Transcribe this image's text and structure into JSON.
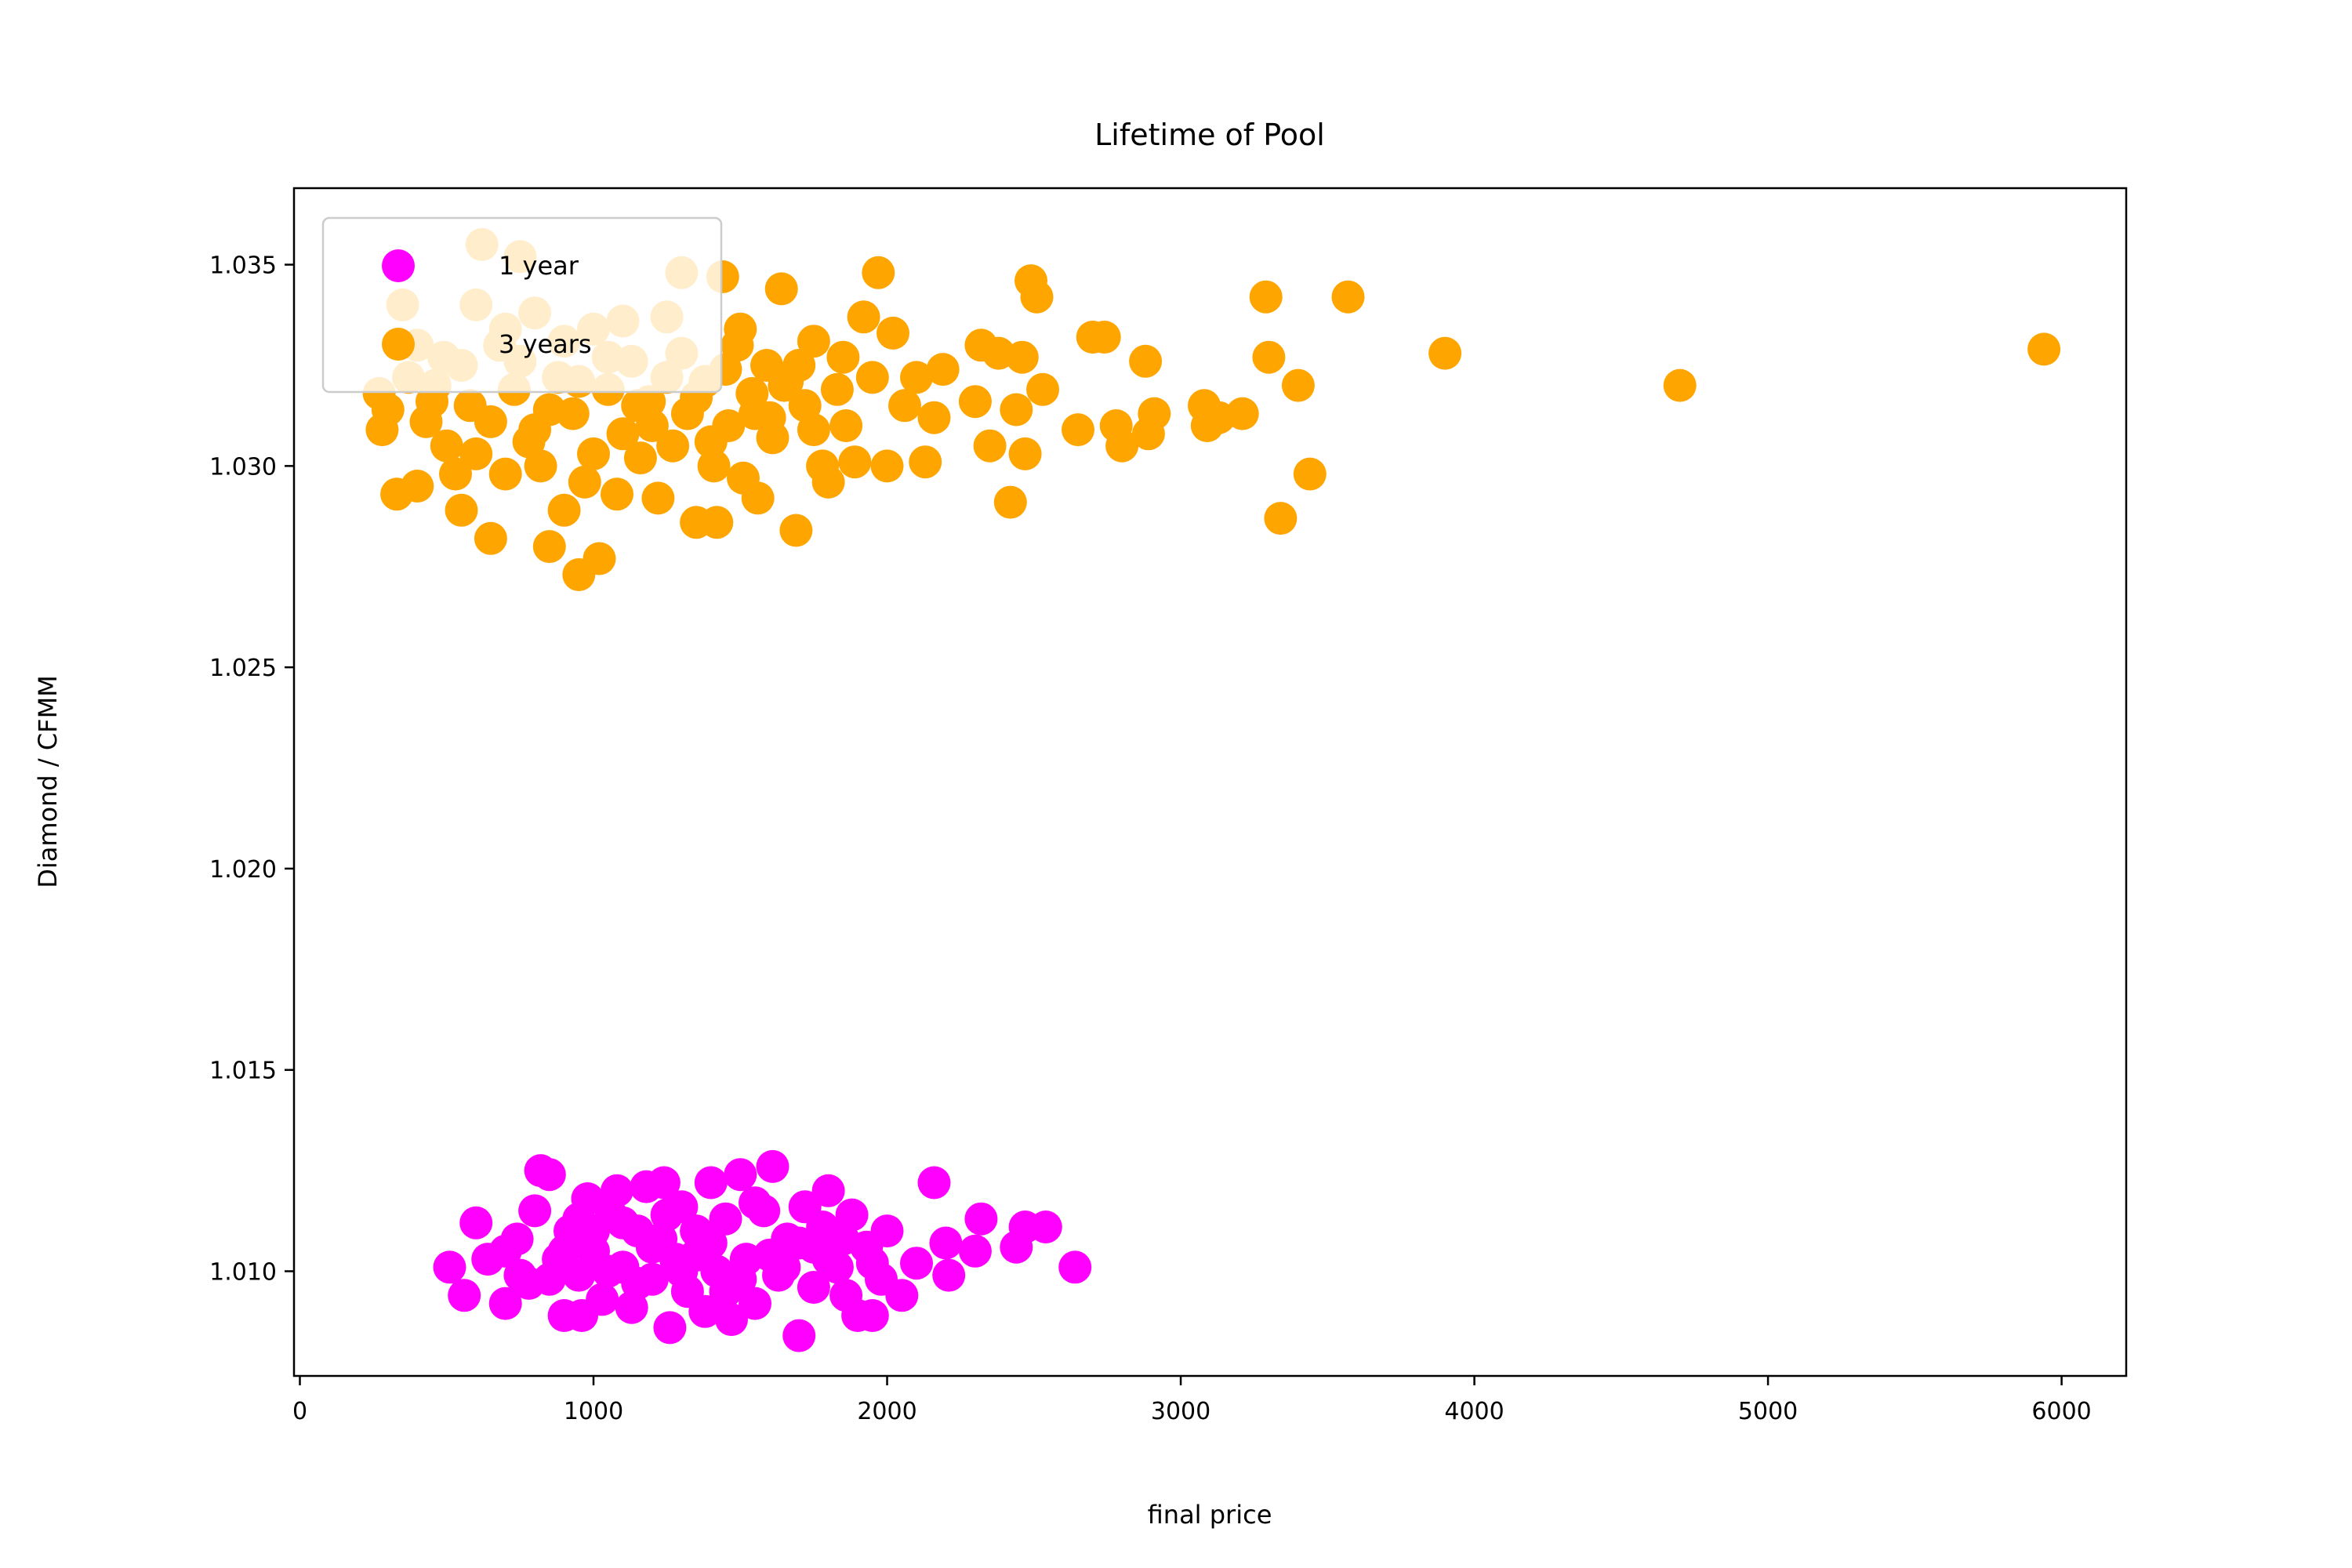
{
  "chart_data": {
    "type": "scatter",
    "title": "Lifetime of Pool",
    "xlabel": "final price",
    "ylabel": "Diamond / CFMM",
    "xlim": [
      -20,
      6220
    ],
    "ylim": [
      1.0074,
      1.0369
    ],
    "xticks": [
      0,
      1000,
      2000,
      3000,
      4000,
      5000,
      6000
    ],
    "yticks": [
      1.01,
      1.015,
      1.02,
      1.025,
      1.03,
      1.035
    ],
    "ytick_labels": [
      "1.010",
      "1.015",
      "1.020",
      "1.025",
      "1.030",
      "1.035"
    ],
    "grid": false,
    "legend_position": "top-left",
    "series": [
      {
        "name": "1 year",
        "color": "#ff00ff",
        "points": [
          [
            510,
            1.0101
          ],
          [
            560,
            1.0094
          ],
          [
            600,
            1.0112
          ],
          [
            640,
            1.0103
          ],
          [
            700,
            1.0092
          ],
          [
            740,
            1.0108
          ],
          [
            780,
            1.0097
          ],
          [
            800,
            1.0115
          ],
          [
            820,
            1.0125
          ],
          [
            850,
            1.0124
          ],
          [
            880,
            1.0103
          ],
          [
            900,
            1.0089
          ],
          [
            920,
            1.011
          ],
          [
            950,
            1.0099
          ],
          [
            960,
            1.0089
          ],
          [
            980,
            1.0118
          ],
          [
            1000,
            1.0105
          ],
          [
            1030,
            1.0093
          ],
          [
            1060,
            1.0114
          ],
          [
            1080,
            1.012
          ],
          [
            1100,
            1.0101
          ],
          [
            1130,
            1.0091
          ],
          [
            1150,
            1.011
          ],
          [
            1180,
            1.0121
          ],
          [
            1200,
            1.0098
          ],
          [
            1230,
            1.0108
          ],
          [
            1240,
            1.0122
          ],
          [
            1260,
            1.0086
          ],
          [
            1280,
            1.0103
          ],
          [
            1300,
            1.0116
          ],
          [
            1320,
            1.0095
          ],
          [
            1350,
            1.011
          ],
          [
            1380,
            1.009
          ],
          [
            1400,
            1.0122
          ],
          [
            1420,
            1.01
          ],
          [
            1450,
            1.0113
          ],
          [
            1470,
            1.0088
          ],
          [
            1500,
            1.0124
          ],
          [
            1520,
            1.0103
          ],
          [
            1550,
            1.0092
          ],
          [
            1580,
            1.0115
          ],
          [
            1610,
            1.0126
          ],
          [
            1630,
            1.0099
          ],
          [
            1660,
            1.0108
          ],
          [
            1700,
            1.0084
          ],
          [
            1720,
            1.0116
          ],
          [
            1750,
            1.0096
          ],
          [
            1780,
            1.0111
          ],
          [
            1800,
            1.012
          ],
          [
            1830,
            1.0101
          ],
          [
            1860,
            1.0094
          ],
          [
            1880,
            1.0114
          ],
          [
            1900,
            1.0089
          ],
          [
            1930,
            1.0106
          ],
          [
            1950,
            1.0089
          ],
          [
            1980,
            1.0098
          ],
          [
            2000,
            1.011
          ],
          [
            2050,
            1.0094
          ],
          [
            2100,
            1.0102
          ],
          [
            2160,
            1.0122
          ],
          [
            2200,
            1.0107
          ],
          [
            2210,
            1.0099
          ],
          [
            2300,
            1.0105
          ],
          [
            2320,
            1.0113
          ],
          [
            2440,
            1.0106
          ],
          [
            2470,
            1.0111
          ],
          [
            2540,
            1.0111
          ],
          [
            2640,
            1.0101
          ],
          [
            900,
            1.0105
          ],
          [
            1000,
            1.011
          ],
          [
            1100,
            1.0112
          ],
          [
            1200,
            1.0106
          ],
          [
            1300,
            1.01
          ],
          [
            1400,
            1.0107
          ],
          [
            1500,
            1.0098
          ],
          [
            1600,
            1.0104
          ],
          [
            1700,
            1.0107
          ],
          [
            1800,
            1.0103
          ],
          [
            850,
            1.0098
          ],
          [
            950,
            1.0113
          ],
          [
            1050,
            1.01
          ],
          [
            1150,
            1.0097
          ],
          [
            1250,
            1.0114
          ],
          [
            1350,
            1.0104
          ],
          [
            1450,
            1.0095
          ],
          [
            1550,
            1.0117
          ],
          [
            1650,
            1.0101
          ],
          [
            1750,
            1.0106
          ],
          [
            700,
            1.0105
          ],
          [
            750,
            1.0099
          ],
          [
            1850,
            1.0108
          ],
          [
            1950,
            1.0102
          ]
        ]
      },
      {
        "name": "3 years",
        "color": "#ffa500",
        "points": [
          [
            270,
            1.0318
          ],
          [
            280,
            1.0309
          ],
          [
            300,
            1.0314
          ],
          [
            330,
            1.0293
          ],
          [
            350,
            1.034
          ],
          [
            370,
            1.0322
          ],
          [
            400,
            1.0295
          ],
          [
            430,
            1.0311
          ],
          [
            460,
            1.032
          ],
          [
            490,
            1.0327
          ],
          [
            500,
            1.0305
          ],
          [
            530,
            1.0298
          ],
          [
            550,
            1.0289
          ],
          [
            580,
            1.0315
          ],
          [
            600,
            1.034
          ],
          [
            620,
            1.0355
          ],
          [
            650,
            1.0282
          ],
          [
            680,
            1.033
          ],
          [
            700,
            1.0298
          ],
          [
            730,
            1.0319
          ],
          [
            750,
            1.0352
          ],
          [
            780,
            1.0306
          ],
          [
            800,
            1.0338
          ],
          [
            820,
            1.03
          ],
          [
            850,
            1.028
          ],
          [
            880,
            1.0322
          ],
          [
            900,
            1.0289
          ],
          [
            930,
            1.0313
          ],
          [
            950,
            1.0273
          ],
          [
            970,
            1.0296
          ],
          [
            1000,
            1.0334
          ],
          [
            1020,
            1.0277
          ],
          [
            1050,
            1.0319
          ],
          [
            1080,
            1.0293
          ],
          [
            1100,
            1.0308
          ],
          [
            1130,
            1.0326
          ],
          [
            1160,
            1.0302
          ],
          [
            1190,
            1.0316
          ],
          [
            1220,
            1.0292
          ],
          [
            1250,
            1.0337
          ],
          [
            1270,
            1.0305
          ],
          [
            1300,
            1.0348
          ],
          [
            1320,
            1.0313
          ],
          [
            1350,
            1.0286
          ],
          [
            1380,
            1.0321
          ],
          [
            1410,
            1.03
          ],
          [
            1420,
            1.0286
          ],
          [
            1440,
            1.0347
          ],
          [
            1460,
            1.031
          ],
          [
            1490,
            1.033
          ],
          [
            1510,
            1.0297
          ],
          [
            1540,
            1.0318
          ],
          [
            1560,
            1.0292
          ],
          [
            1590,
            1.0325
          ],
          [
            1610,
            1.0307
          ],
          [
            1640,
            1.0344
          ],
          [
            1660,
            1.0321
          ],
          [
            1690,
            1.0284
          ],
          [
            1720,
            1.0315
          ],
          [
            1750,
            1.0331
          ],
          [
            1780,
            1.03
          ],
          [
            1800,
            1.0296
          ],
          [
            1830,
            1.0319
          ],
          [
            1860,
            1.031
          ],
          [
            1890,
            1.0301
          ],
          [
            1920,
            1.0337
          ],
          [
            1950,
            1.0322
          ],
          [
            1970,
            1.0348
          ],
          [
            2000,
            1.03
          ],
          [
            2020,
            1.0333
          ],
          [
            2060,
            1.0315
          ],
          [
            2100,
            1.0322
          ],
          [
            2130,
            1.0301
          ],
          [
            2160,
            1.0312
          ],
          [
            2190,
            1.0324
          ],
          [
            2300,
            1.0316
          ],
          [
            2320,
            1.033
          ],
          [
            2350,
            1.0305
          ],
          [
            2380,
            1.0328
          ],
          [
            2420,
            1.0291
          ],
          [
            2440,
            1.0314
          ],
          [
            2460,
            1.0327
          ],
          [
            2470,
            1.0303
          ],
          [
            2490,
            1.0346
          ],
          [
            2510,
            1.0342
          ],
          [
            2530,
            1.0319
          ],
          [
            2650,
            1.0309
          ],
          [
            2700,
            1.0332
          ],
          [
            2740,
            1.0332
          ],
          [
            2780,
            1.031
          ],
          [
            2800,
            1.0305
          ],
          [
            2880,
            1.0326
          ],
          [
            2890,
            1.0308
          ],
          [
            2910,
            1.0313
          ],
          [
            3080,
            1.0315
          ],
          [
            3090,
            1.031
          ],
          [
            3130,
            1.0312
          ],
          [
            3210,
            1.0313
          ],
          [
            3290,
            1.0342
          ],
          [
            3300,
            1.0327
          ],
          [
            3340,
            1.0287
          ],
          [
            3400,
            1.032
          ],
          [
            3440,
            1.0298
          ],
          [
            3570,
            1.0342
          ],
          [
            3900,
            1.0328
          ],
          [
            4700,
            1.032
          ],
          [
            5940,
            1.0329
          ],
          [
            400,
            1.033
          ],
          [
            450,
            1.0316
          ],
          [
            550,
            1.0325
          ],
          [
            650,
            1.0311
          ],
          [
            750,
            1.0326
          ],
          [
            850,
            1.0314
          ],
          [
            950,
            1.0321
          ],
          [
            1050,
            1.0327
          ],
          [
            1150,
            1.0315
          ],
          [
            1250,
            1.0322
          ],
          [
            1350,
            1.0317
          ],
          [
            1450,
            1.0324
          ],
          [
            1550,
            1.0313
          ],
          [
            1650,
            1.032
          ],
          [
            1750,
            1.0309
          ],
          [
            1850,
            1.0327
          ],
          [
            600,
            1.0303
          ],
          [
            800,
            1.0309
          ],
          [
            1000,
            1.0303
          ],
          [
            1200,
            1.031
          ],
          [
            1400,
            1.0306
          ],
          [
            1600,
            1.0312
          ],
          [
            700,
            1.0334
          ],
          [
            900,
            1.0331
          ],
          [
            1100,
            1.0336
          ],
          [
            1300,
            1.0328
          ],
          [
            1500,
            1.0334
          ],
          [
            1700,
            1.0325
          ]
        ]
      }
    ]
  }
}
